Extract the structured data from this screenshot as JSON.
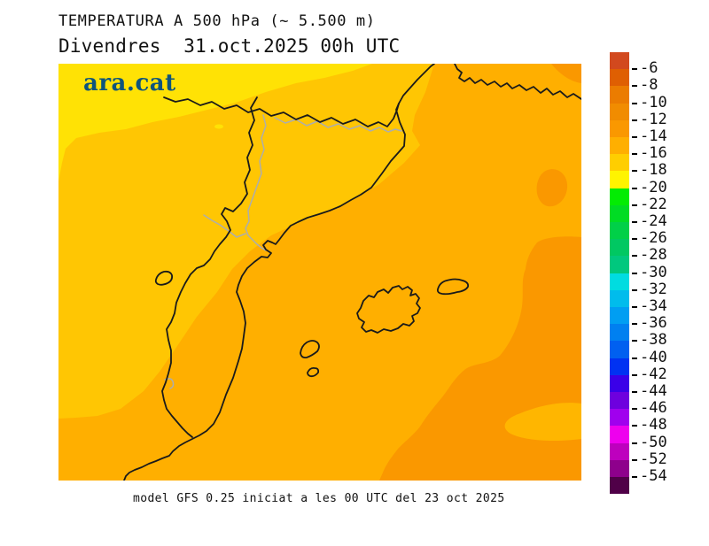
{
  "header": {
    "title": "TEMPERATURA A 500 hPa (~ 5.500 m)",
    "subtitle": "Divendres  31.oct.2025 00h UTC"
  },
  "branding": {
    "logo_text": "ara.cat",
    "logo_color": "#0E547C"
  },
  "footer": {
    "caption": "model GFS 0.25 iniciat a les 00 UTC del 23 oct 2025"
  },
  "map": {
    "description": "500 hPa temperature field over Catalonia, Valencia and Balearic Islands",
    "colors": {
      "band_minus12": "#FA9800",
      "band_minus14_sea": "#FFAF00",
      "band_minus14_patch": "#FFB600",
      "band_minus16": "#FFC603",
      "band_minus18": "#FFE205",
      "coastline": "#1A1A1A",
      "border": "#1A1A1A",
      "river": "#ADADAD"
    }
  },
  "colorbar": {
    "tick_labels": [
      "-6",
      "-8",
      "-10",
      "-12",
      "-14",
      "-16",
      "-18",
      "-20",
      "-22",
      "-24",
      "-26",
      "-28",
      "-30",
      "-32",
      "-34",
      "-36",
      "-38",
      "-40",
      "-42",
      "-44",
      "-46",
      "-48",
      "-50",
      "-52",
      "-54"
    ],
    "segment_colors": [
      "#D2491E",
      "#DF5F02",
      "#EB7C00",
      "#F18C00",
      "#FA9800",
      "#FFAF00",
      "#FFCE00",
      "#FFF400",
      "#03EC03",
      "#00DC24",
      "#00D048",
      "#00C862",
      "#00C87E",
      "#00DCE0",
      "#00BCEC",
      "#009EF2",
      "#0080F0",
      "#0060F0",
      "#0032F2",
      "#3A00E8",
      "#6E00DE",
      "#A000EE",
      "#EE00EE",
      "#BE00BE",
      "#8E008C",
      "#500048"
    ]
  }
}
